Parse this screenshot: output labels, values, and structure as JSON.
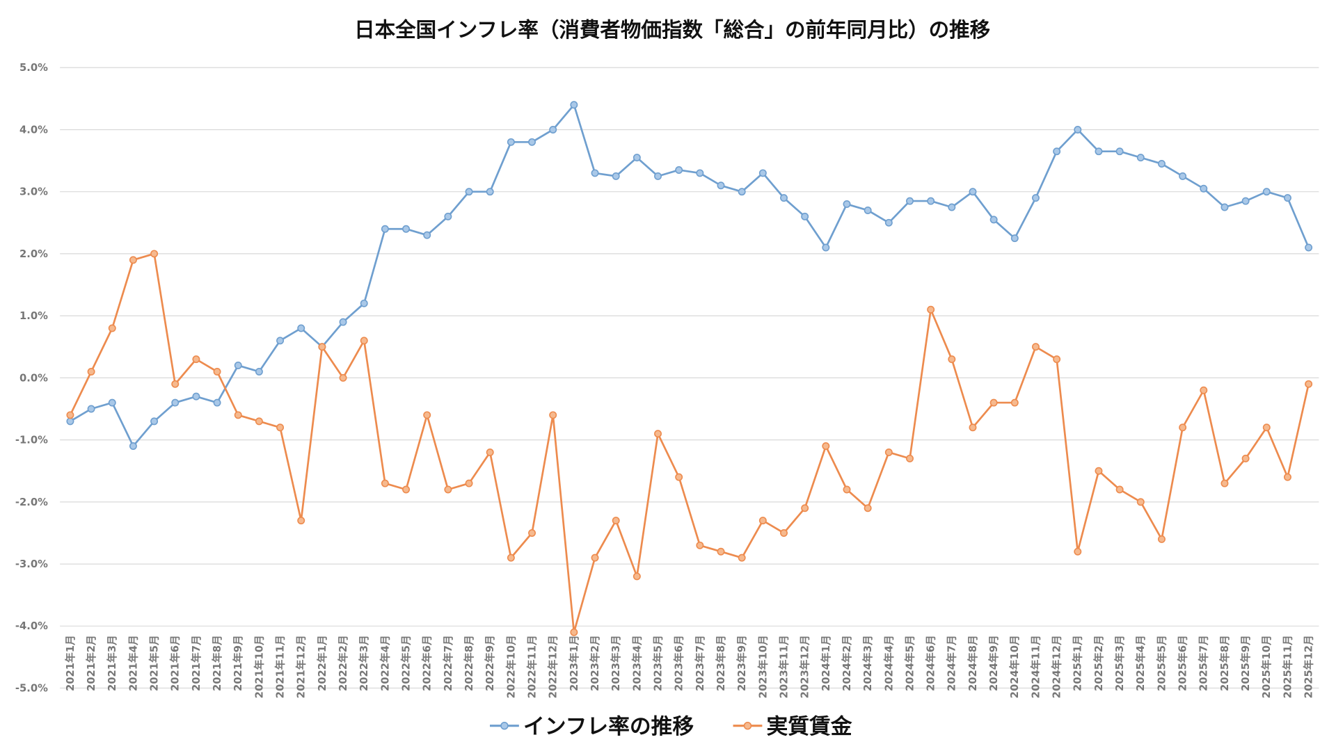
{
  "chart_data": {
    "type": "line",
    "title": "日本全国インフレ率（消費者物価指数「総合」の前年同月比）の推移",
    "xlabel": "",
    "ylabel": "",
    "ylim": [
      -5,
      5
    ],
    "ytick_labels": [
      "5.0%",
      "4.0%",
      "3.0%",
      "2.0%",
      "1.0%",
      "0.0%",
      "-1.0%",
      "-2.0%",
      "-3.0%",
      "-4.0%",
      "-5.0%"
    ],
    "grid": true,
    "legend_position": "bottom",
    "categories": [
      "2021年1月",
      "2021年2月",
      "2021年3月",
      "2021年4月",
      "2021年5月",
      "2021年6月",
      "2021年7月",
      "2021年8月",
      "2021年9月",
      "2021年10月",
      "2021年11月",
      "2021年12月",
      "2022年1月",
      "2022年2月",
      "2022年3月",
      "2022年4月",
      "2022年5月",
      "2022年6月",
      "2022年7月",
      "2022年8月",
      "2022年9月",
      "2022年10月",
      "2022年11月",
      "2022年12月",
      "2023年1月",
      "2023年2月",
      "2023年3月",
      "2023年4月",
      "2023年5月",
      "2023年6月",
      "2023年7月",
      "2023年8月",
      "2023年9月",
      "2023年10月",
      "2023年11月",
      "2023年12月",
      "2024年1月",
      "2024年2月",
      "2024年3月",
      "2024年4月",
      "2024年5月",
      "2024年6月",
      "2024年7月",
      "2024年8月",
      "2024年9月",
      "2024年10月",
      "2024年11月",
      "2024年12月",
      "2025年1月",
      "2025年2月",
      "2025年3月",
      "2025年4月",
      "2025年5月",
      "2025年6月",
      "2025年7月",
      "2025年8月",
      "2025年9月",
      "2025年10月",
      "2025年11月",
      "2025年12月"
    ],
    "series": [
      {
        "name": "インフレ率の推移",
        "color": "#6f9fcf",
        "marker_fill": "#a9c8e8",
        "values": [
          -0.7,
          -0.5,
          -0.4,
          -1.1,
          -0.7,
          -0.4,
          -0.3,
          -0.4,
          0.2,
          0.1,
          0.6,
          0.8,
          0.5,
          0.9,
          1.2,
          2.4,
          2.4,
          2.3,
          2.6,
          3.0,
          3.0,
          3.8,
          3.8,
          4.0,
          4.4,
          3.3,
          3.25,
          3.55,
          3.25,
          3.35,
          3.3,
          3.1,
          3.0,
          3.3,
          2.9,
          2.6,
          2.1,
          2.8,
          2.7,
          2.5,
          2.85,
          2.85,
          2.75,
          3.0,
          2.55,
          2.25,
          2.9,
          3.65,
          4.0,
          3.65,
          3.65,
          3.55,
          3.45,
          3.25,
          3.05,
          2.75,
          2.85,
          3.0,
          2.9,
          2.1
        ]
      },
      {
        "name": "実質賃金",
        "color": "#ed8b4e",
        "marker_fill": "#f6b98e",
        "values": [
          -0.6,
          0.1,
          0.8,
          1.9,
          2.0,
          -0.1,
          0.3,
          0.1,
          -0.6,
          -0.7,
          -0.8,
          -2.3,
          0.5,
          0.0,
          0.6,
          -1.7,
          -1.8,
          -0.6,
          -1.8,
          -1.7,
          -1.2,
          -2.9,
          -2.5,
          -0.6,
          -4.1,
          -2.9,
          -2.3,
          -3.2,
          -0.9,
          -1.6,
          -2.7,
          -2.8,
          -2.9,
          -2.3,
          -2.5,
          -2.1,
          -1.1,
          -1.8,
          -2.1,
          -1.2,
          -1.3,
          1.1,
          0.3,
          -0.8,
          -0.4,
          -0.4,
          0.5,
          0.3,
          -2.8,
          -1.5,
          -1.8,
          -2.0,
          -2.6,
          -0.8,
          -0.2,
          -1.7,
          -1.3,
          -0.8,
          -1.6,
          -0.1
        ]
      }
    ]
  }
}
